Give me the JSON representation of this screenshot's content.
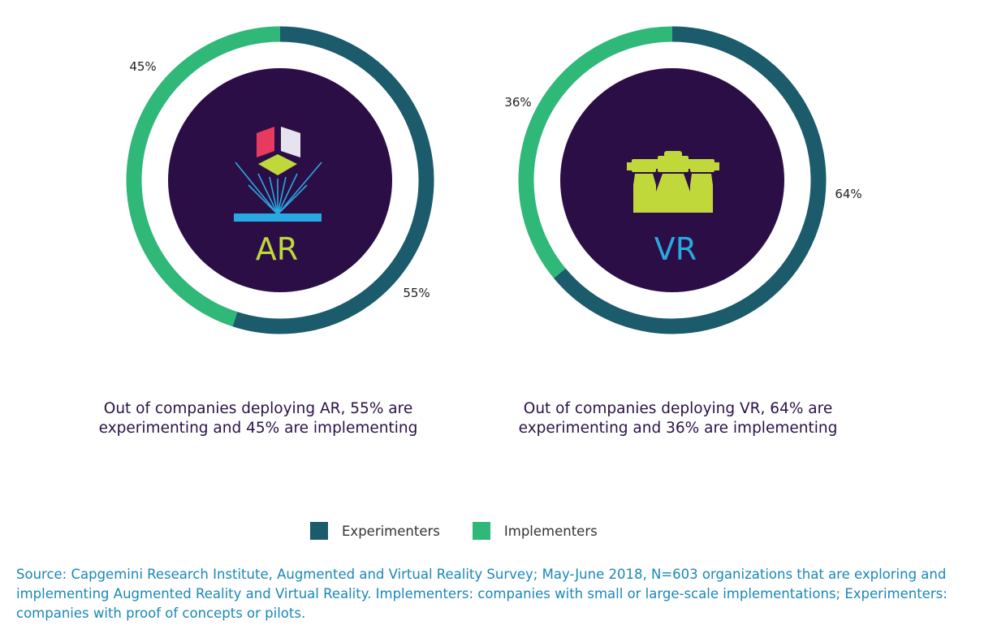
{
  "colors": {
    "experimenters": "#1b5b6b",
    "implementers": "#2fb877",
    "inner_circle": "#2c0e47",
    "ar_label": "#c0d83a",
    "vr_label": "#29a9e1",
    "caption_text": "#2b1246",
    "source_text": "#1a87b8"
  },
  "chart_data": [
    {
      "type": "pie",
      "center_label": "AR",
      "icon": "ar-hologram-cube-icon",
      "slices": [
        {
          "name": "Experimenters",
          "value": 55,
          "label": "55%"
        },
        {
          "name": "Implementers",
          "value": 45,
          "label": "45%"
        }
      ],
      "caption": [
        "Out of companies deploying AR, 55% are",
        "experimenting and 45% are implementing"
      ]
    },
    {
      "type": "pie",
      "center_label": "VR",
      "icon": "vr-headset-group-icon",
      "slices": [
        {
          "name": "Experimenters",
          "value": 64,
          "label": "64%"
        },
        {
          "name": "Implementers",
          "value": 36,
          "label": "36%"
        }
      ],
      "caption": [
        "Out of companies deploying VR, 64% are",
        "experimenting and 36% are implementing"
      ]
    }
  ],
  "legend": [
    {
      "label": "Experimenters",
      "color": "#1b5b6b"
    },
    {
      "label": "Implementers",
      "color": "#2fb877"
    }
  ],
  "source": [
    "Source: Capgemini Research Institute, Augmented and Virtual Reality Survey; May-June 2018, N=603 organizations that are exploring and",
    "implementing Augmented Reality and Virtual Reality. Implementers: companies with small or large-scale implementations; Experimenters:",
    "companies with proof of concepts or pilots."
  ]
}
